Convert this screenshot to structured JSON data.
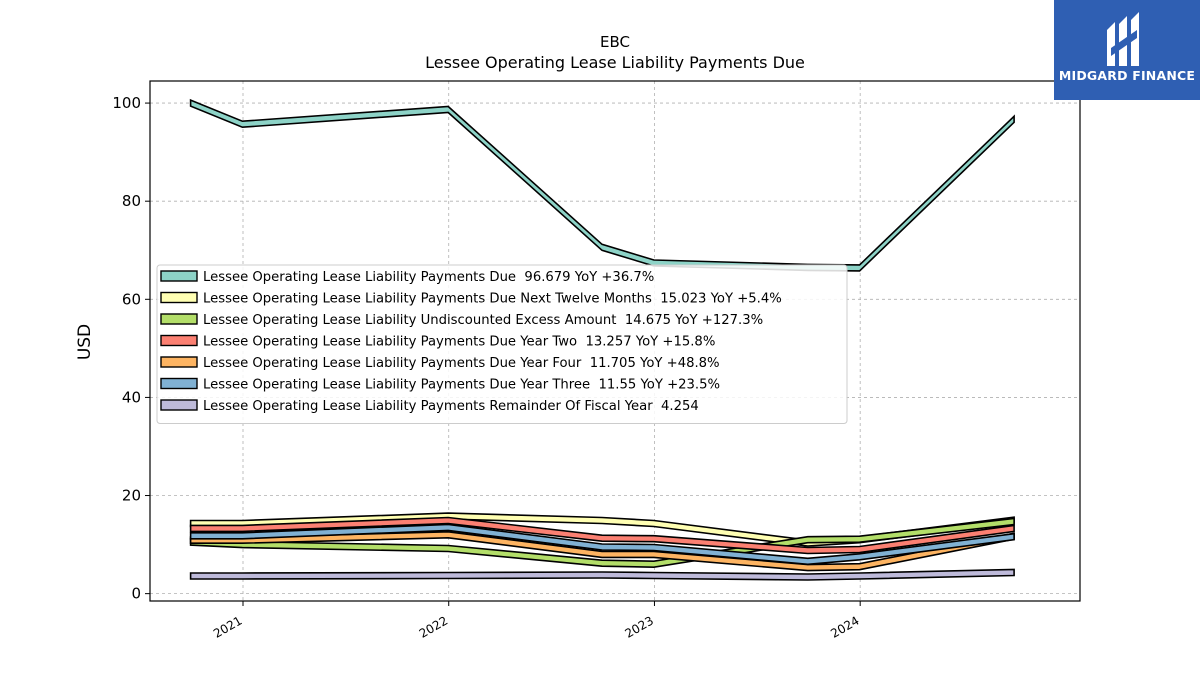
{
  "brand": {
    "name": "MIDGARD FINANCE",
    "color": "#2f5fb3"
  },
  "chart_data": {
    "type": "line",
    "title": "EBC",
    "subtitle": "Lessee Operating Lease Liability Payments Due",
    "ylabel": "USD",
    "xlabel": "",
    "ylim": [
      -1.5,
      104.5
    ],
    "yticks": [
      0,
      20,
      40,
      60,
      80,
      100
    ],
    "xlim": [
      "2020-07-20",
      "2025-01-25"
    ],
    "xticks": [
      {
        "label": "2021",
        "date": "2021-01-01"
      },
      {
        "label": "2022",
        "date": "2022-01-01"
      },
      {
        "label": "2023",
        "date": "2023-01-01"
      },
      {
        "label": "2024",
        "date": "2024-01-01"
      }
    ],
    "grid": true,
    "legend_position": "center-left",
    "series": [
      {
        "name": "Lessee Operating Lease Liability Payments Due",
        "legend": "Lessee Operating Lease Liability Payments Due  96.679 YoY +36.7%",
        "color": "#8dd3c7",
        "x": [
          "2020-09-30",
          "2020-12-31",
          "2021-12-31",
          "2022-09-30",
          "2022-12-31",
          "2023-09-30",
          "2023-12-31",
          "2024-09-30"
        ],
        "y": [
          100.0,
          95.7,
          98.7,
          70.6,
          67.4,
          66.5,
          66.4,
          96.7
        ]
      },
      {
        "name": "Lessee Operating Lease Liability Payments Due Next Twelve Months",
        "legend": "Lessee Operating Lease Liability Payments Due Next Twelve Months  15.023 YoY +5.4%",
        "color": "#ffffb3",
        "x": [
          "2020-09-30",
          "2020-12-31",
          "2021-12-31",
          "2022-09-30",
          "2022-12-31",
          "2023-09-30",
          "2023-12-31",
          "2024-09-30"
        ],
        "y": [
          14.3,
          14.3,
          15.8,
          14.9,
          14.3,
          10.3,
          11.0,
          15.0
        ]
      },
      {
        "name": "Lessee Operating Lease Liability Undiscounted Excess Amount",
        "legend": "Lessee Operating Lease Liability Undiscounted Excess Amount  14.675 YoY +127.3%",
        "color": "#b3de69",
        "x": [
          "2020-09-30",
          "2020-12-31",
          "2021-12-31",
          "2022-09-30",
          "2022-12-31",
          "2023-09-30",
          "2023-12-31",
          "2024-09-30"
        ],
        "y": [
          10.5,
          10.0,
          9.2,
          6.2,
          6.0,
          11.0,
          11.1,
          14.7
        ]
      },
      {
        "name": "Lessee Operating Lease Liability Payments Due Year Two",
        "legend": "Lessee Operating Lease Liability Payments Due Year Two  13.257 YoY +15.8%",
        "color": "#fb8072",
        "x": [
          "2020-09-30",
          "2020-12-31",
          "2021-12-31",
          "2022-09-30",
          "2022-12-31",
          "2023-09-30",
          "2023-12-31",
          "2024-09-30"
        ],
        "y": [
          13.3,
          13.3,
          14.9,
          11.3,
          11.2,
          8.8,
          9.0,
          13.3
        ]
      },
      {
        "name": "Lessee Operating Lease Liability Payments Due Year Four",
        "legend": "Lessee Operating Lease Liability Payments Due Year Four  11.705 YoY +48.8%",
        "color": "#fdb462",
        "x": [
          "2020-09-30",
          "2020-12-31",
          "2021-12-31",
          "2022-09-30",
          "2022-12-31",
          "2023-09-30",
          "2023-12-31",
          "2024-09-30"
        ],
        "y": [
          10.9,
          10.9,
          12.0,
          8.0,
          8.0,
          5.3,
          5.5,
          11.7
        ]
      },
      {
        "name": "Lessee Operating Lease Liability Payments Due Year Three",
        "legend": "Lessee Operating Lease Liability Payments Due Year Three  11.55 YoY +23.5%",
        "color": "#80b1d3",
        "x": [
          "2020-09-30",
          "2020-12-31",
          "2021-12-31",
          "2022-09-30",
          "2022-12-31",
          "2023-09-30",
          "2023-12-31",
          "2024-09-30"
        ],
        "y": [
          11.8,
          11.8,
          13.5,
          9.5,
          9.4,
          6.6,
          7.5,
          11.6
        ]
      },
      {
        "name": "Lessee Operating Lease Liability Payments Remainder Of Fiscal Year",
        "legend": "Lessee Operating Lease Liability Payments Remainder Of Fiscal Year  4.254",
        "color": "#bebada",
        "x": [
          "2020-09-30",
          "2020-12-31",
          "2021-12-31",
          "2022-09-30",
          "2022-12-31",
          "2023-09-30",
          "2023-12-31",
          "2024-09-30"
        ],
        "y": [
          3.6,
          3.6,
          3.7,
          3.8,
          3.7,
          3.4,
          3.6,
          4.3
        ]
      }
    ]
  }
}
